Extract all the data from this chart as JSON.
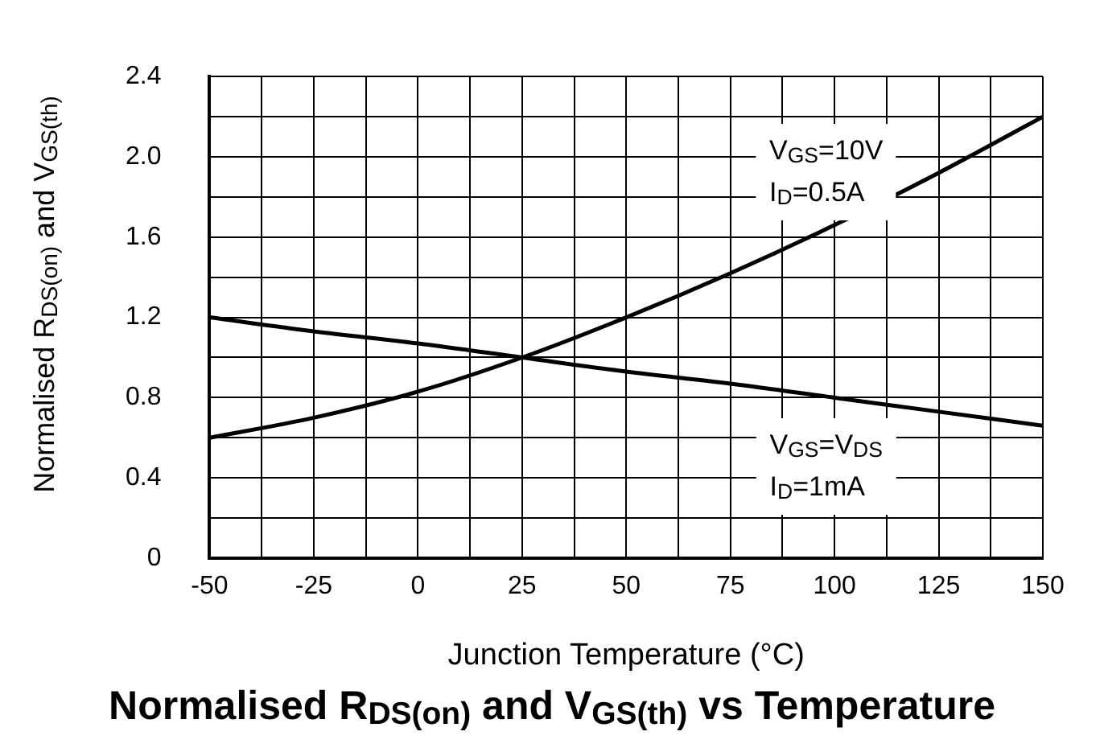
{
  "chart_data": {
    "type": "line",
    "title": "Normalised R$_{DS(on)}$ and V$_{GS(th)}$ vs Temperature",
    "xlabel": "Junction Temperature (°C)",
    "ylabel": "Normalised R$_{DS(on)}$ and V$_{GS(th)}$",
    "x": [
      -50,
      -25,
      0,
      25,
      50,
      75,
      100,
      125,
      150
    ],
    "series": [
      {
        "color": "#000000",
        "values": [
          0.6,
          0.7,
          0.83,
          1.0,
          1.2,
          1.42,
          1.66,
          1.92,
          2.2
        ]
      },
      {
        "color": "#000000",
        "values": [
          1.2,
          1.13,
          1.07,
          1.0,
          0.93,
          0.87,
          0.8,
          0.73,
          0.66
        ]
      }
    ],
    "xlim": [
      -50,
      150
    ],
    "xticks": [
      -50,
      {
        "value": -37.5,
        "label": null
      },
      -25,
      {
        "value": -12.5,
        "label": null
      },
      0,
      {
        "value": 12.5,
        "label": null
      },
      25,
      {
        "value": 37.5,
        "label": null
      },
      50,
      {
        "value": 62.5,
        "label": null
      },
      75,
      {
        "value": 87.5,
        "label": null
      },
      100,
      {
        "value": 112.5,
        "label": null
      },
      125,
      {
        "value": 137.5,
        "label": null
      },
      150
    ],
    "ylim": [
      0,
      2.4
    ],
    "yticks": [
      0,
      {
        "value": 0.2,
        "label": null
      },
      0.4,
      {
        "value": 0.6,
        "label": null
      },
      0.8,
      {
        "value": 1.0,
        "label": null
      },
      1.2,
      {
        "value": 1.4,
        "label": null
      },
      1.6,
      {
        "value": 1.8,
        "label": null
      },
      {
        "value": 2,
        "label": "2.0"
      },
      {
        "value": 2.2,
        "label": null
      },
      2.4
    ],
    "grid": true,
    "legend": false,
    "annotations": [
      "V$_{GS}$=10V\nI$_{D}$=0.5A",
      "V$_{GS}$=V$_{DS}$\nI$_{D}$=1mA"
    ]
  }
}
